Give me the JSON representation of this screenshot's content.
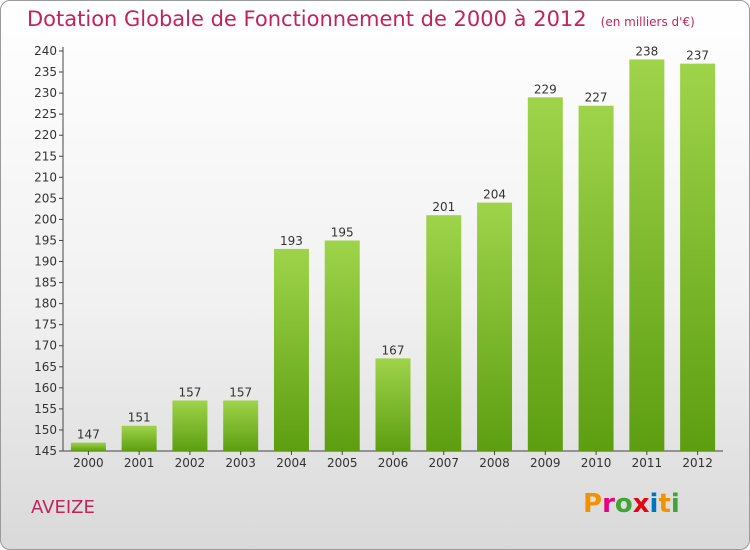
{
  "header": {
    "title": "Dotation Globale de Fonctionnement de 2000 à 2012",
    "subtitle": "(en milliers d'€)"
  },
  "footer": {
    "town": "AVEIZE",
    "logo_letters": [
      "P",
      "r",
      "o",
      "x",
      "i",
      "t",
      "i"
    ],
    "logo_colors": [
      "#f39200",
      "#e6007e",
      "#3fa535",
      "#e30613",
      "#0075bf",
      "#f39200",
      "#3fa535"
    ]
  },
  "chart_data": {
    "type": "bar",
    "categories": [
      "2000",
      "2001",
      "2002",
      "2003",
      "2004",
      "2005",
      "2006",
      "2007",
      "2008",
      "2009",
      "2010",
      "2011",
      "2012"
    ],
    "values": [
      147,
      151,
      157,
      157,
      193,
      195,
      167,
      201,
      204,
      229,
      227,
      238,
      237
    ],
    "title": "Dotation Globale de Fonctionnement de 2000 à 2012",
    "ylim": [
      145,
      240
    ],
    "yticks": [
      145,
      150,
      155,
      160,
      165,
      170,
      175,
      180,
      185,
      190,
      195,
      200,
      205,
      210,
      215,
      220,
      225,
      230,
      235,
      240
    ],
    "grid": false,
    "legend": "none",
    "bar_color_top": "#9fd44a",
    "bar_color_bottom": "#5d9e10"
  }
}
